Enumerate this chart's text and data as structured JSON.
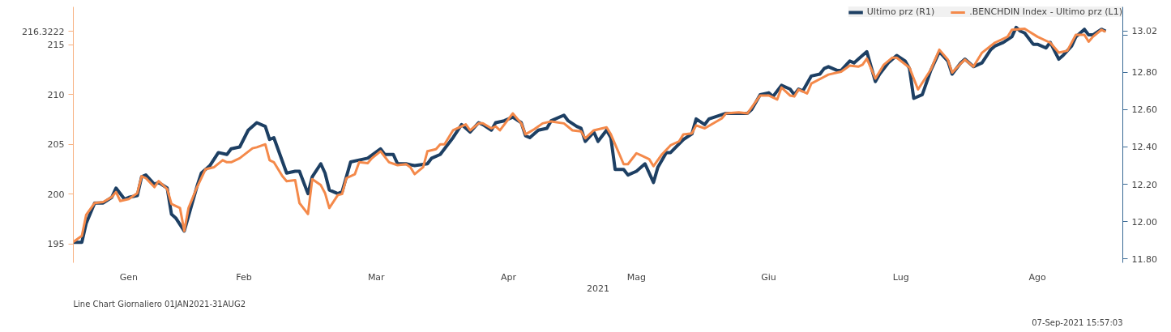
{
  "chart_data": {
    "type": "line",
    "xlabel": "2021",
    "legend": "top right",
    "grid": false,
    "marker": "none",
    "line_style": "solid",
    "xlim": [
      "2021-01-01",
      "2021-09-04"
    ],
    "xticks": [
      {
        "value": "2021-01-14",
        "label": "Gen"
      },
      {
        "value": "2021-02-10",
        "label": "Feb"
      },
      {
        "value": "2021-03-13",
        "label": "Mar"
      },
      {
        "value": "2021-04-13",
        "label": "Apr"
      },
      {
        "value": "2021-05-13",
        "label": "Mag"
      },
      {
        "value": "2021-06-13",
        "label": "Giu"
      },
      {
        "value": "2021-07-14",
        "label": "Lug"
      },
      {
        "value": "2021-08-15",
        "label": "Ago"
      }
    ],
    "ylim": [
      193.1,
      218.8
    ],
    "yticks": [
      195,
      200,
      205,
      210,
      215,
      {
        "value": 216.3222,
        "label": "216.3222"
      }
    ],
    "y2lim": [
      11.78,
      13.15
    ],
    "y2ticks": [
      {
        "value": 11.8,
        "label": "11.80"
      },
      {
        "value": 12.0,
        "label": "12.00"
      },
      {
        "value": 12.2,
        "label": "12.20"
      },
      {
        "value": 12.4,
        "label": "12.40"
      },
      {
        "value": 12.6,
        "label": "12.60"
      },
      {
        "value": 12.8,
        "label": "12.80"
      },
      {
        "value": 13.0,
        "label": null
      },
      {
        "value": 13.02,
        "label": "13.02"
      }
    ],
    "annotations": [
      "Line Chart  Giornaliero 01JAN2021-31AUG2",
      "07-Sep-2021 15:57:03"
    ],
    "series": [
      {
        "name": "Ultimo prz (R1)",
        "color": "#1d3f63",
        "axis": "y2",
        "x": [
          "2021-01-01",
          "2021-01-03",
          "2021-01-04",
          "2021-01-06",
          "2021-01-08",
          "2021-01-10",
          "2021-01-11",
          "2021-01-13",
          "2021-01-14",
          "2021-01-16",
          "2021-01-17",
          "2021-01-18",
          "2021-01-20",
          "2021-01-21",
          "2021-01-23",
          "2021-01-24",
          "2021-01-25",
          "2021-01-27",
          "2021-01-28",
          "2021-01-30",
          "2021-01-31",
          "2021-02-02",
          "2021-02-04",
          "2021-02-06",
          "2021-02-07",
          "2021-02-09",
          "2021-02-11",
          "2021-02-13",
          "2021-02-15",
          "2021-02-16",
          "2021-02-17",
          "2021-02-20",
          "2021-02-22",
          "2021-02-23",
          "2021-02-25",
          "2021-02-26",
          "2021-02-28",
          "2021-03-01",
          "2021-03-02",
          "2021-03-04",
          "2021-03-05",
          "2021-03-07",
          "2021-03-09",
          "2021-03-11",
          "2021-03-14",
          "2021-03-15",
          "2021-03-17",
          "2021-03-18",
          "2021-03-20",
          "2021-03-22",
          "2021-03-25",
          "2021-03-26",
          "2021-03-28",
          "2021-03-31",
          "2021-04-02",
          "2021-04-04",
          "2021-04-06",
          "2021-04-07",
          "2021-04-09",
          "2021-04-10",
          "2021-04-12",
          "2021-04-14",
          "2021-04-16",
          "2021-04-17",
          "2021-04-18",
          "2021-04-20",
          "2021-04-22",
          "2021-04-23",
          "2021-04-26",
          "2021-04-27",
          "2021-04-29",
          "2021-04-30",
          "2021-05-01",
          "2021-05-03",
          "2021-05-04",
          "2021-05-06",
          "2021-05-07",
          "2021-05-08",
          "2021-05-10",
          "2021-05-11",
          "2021-05-13",
          "2021-05-15",
          "2021-05-17",
          "2021-05-18",
          "2021-05-20",
          "2021-05-21",
          "2021-05-24",
          "2021-05-26",
          "2021-05-27",
          "2021-05-29",
          "2021-05-30",
          "2021-06-03",
          "2021-06-06",
          "2021-06-08",
          "2021-06-09",
          "2021-06-11",
          "2021-06-13",
          "2021-06-14",
          "2021-06-16",
          "2021-06-18",
          "2021-06-19",
          "2021-06-20",
          "2021-06-21",
          "2021-06-23",
          "2021-06-25",
          "2021-06-26",
          "2021-06-27",
          "2021-06-29",
          "2021-06-30",
          "2021-07-02",
          "2021-07-03",
          "2021-07-04",
          "2021-07-06",
          "2021-07-08",
          "2021-07-09",
          "2021-07-11",
          "2021-07-13",
          "2021-07-15",
          "2021-07-16",
          "2021-07-17",
          "2021-07-19",
          "2021-07-21",
          "2021-07-23",
          "2021-07-25",
          "2021-07-26",
          "2021-07-28",
          "2021-07-29",
          "2021-07-31",
          "2021-08-02",
          "2021-08-04",
          "2021-08-05",
          "2021-08-07",
          "2021-08-09",
          "2021-08-10",
          "2021-08-11",
          "2021-08-12",
          "2021-08-14",
          "2021-08-15",
          "2021-08-17",
          "2021-08-18",
          "2021-08-20",
          "2021-08-21",
          "2021-08-23",
          "2021-08-24",
          "2021-08-26",
          "2021-08-27",
          "2021-08-28",
          "2021-08-30",
          "2021-08-31"
        ],
        "values": [
          11.89,
          11.89,
          11.99,
          12.1,
          12.1,
          12.13,
          12.18,
          12.12,
          12.13,
          12.14,
          12.24,
          12.25,
          12.2,
          12.21,
          12.18,
          12.04,
          12.02,
          11.95,
          12.03,
          12.19,
          12.26,
          12.3,
          12.37,
          12.36,
          12.39,
          12.4,
          12.49,
          12.53,
          12.51,
          12.44,
          12.45,
          12.26,
          12.27,
          12.27,
          12.15,
          12.24,
          12.31,
          12.26,
          12.17,
          12.15,
          12.16,
          12.32,
          12.33,
          12.34,
          12.39,
          12.36,
          12.36,
          12.31,
          12.31,
          12.3,
          12.31,
          12.34,
          12.36,
          12.45,
          12.52,
          12.48,
          12.53,
          12.52,
          12.49,
          12.53,
          12.54,
          12.56,
          12.53,
          12.46,
          12.45,
          12.49,
          12.5,
          12.54,
          12.57,
          12.54,
          12.51,
          12.5,
          12.43,
          12.48,
          12.43,
          12.49,
          12.45,
          12.28,
          12.28,
          12.25,
          12.27,
          12.31,
          12.21,
          12.29,
          12.37,
          12.37,
          12.44,
          12.47,
          12.55,
          12.52,
          12.55,
          12.58,
          12.58,
          12.58,
          12.6,
          12.68,
          12.69,
          12.67,
          12.73,
          12.71,
          12.68,
          12.71,
          12.7,
          12.78,
          12.79,
          12.82,
          12.83,
          12.81,
          12.81,
          12.86,
          12.85,
          12.87,
          12.91,
          12.75,
          12.79,
          12.85,
          12.89,
          12.86,
          12.82,
          12.66,
          12.68,
          12.81,
          12.91,
          12.86,
          12.79,
          12.85,
          12.87,
          12.83,
          12.85,
          12.92,
          12.94,
          12.96,
          12.99,
          13.04,
          13.02,
          13.01,
          12.95,
          12.95,
          12.93,
          12.96,
          12.87,
          12.89,
          12.94,
          12.99,
          13.03,
          13.0,
          13.0,
          13.03,
          13.02
        ]
      },
      {
        "name": ".BENCHDIN Index - Ultimo prz (L1)",
        "color": "#f4894a",
        "x": [
          "2021-01-01",
          "2021-01-03",
          "2021-01-04",
          "2021-01-06",
          "2021-01-08",
          "2021-01-10",
          "2021-01-11",
          "2021-01-12",
          "2021-01-14",
          "2021-01-16",
          "2021-01-17",
          "2021-01-18",
          "2021-01-20",
          "2021-01-21",
          "2021-01-23",
          "2021-01-24",
          "2021-01-26",
          "2021-01-27",
          "2021-01-28",
          "2021-01-30",
          "2021-02-01",
          "2021-02-03",
          "2021-02-05",
          "2021-02-06",
          "2021-02-07",
          "2021-02-09",
          "2021-02-12",
          "2021-02-13",
          "2021-02-15",
          "2021-02-16",
          "2021-02-17",
          "2021-02-19",
          "2021-02-20",
          "2021-02-22",
          "2021-02-23",
          "2021-02-25",
          "2021-02-26",
          "2021-02-28",
          "2021-03-01",
          "2021-03-02",
          "2021-03-04",
          "2021-03-05",
          "2021-03-06",
          "2021-03-08",
          "2021-03-09",
          "2021-03-11",
          "2021-03-12",
          "2021-03-14",
          "2021-03-16",
          "2021-03-18",
          "2021-03-20",
          "2021-03-21",
          "2021-03-22",
          "2021-03-24",
          "2021-03-25",
          "2021-03-27",
          "2021-03-28",
          "2021-03-29",
          "2021-03-31",
          "2021-04-03",
          "2021-04-04",
          "2021-04-06",
          "2021-04-07",
          "2021-04-09",
          "2021-04-10",
          "2021-04-11",
          "2021-04-14",
          "2021-04-16",
          "2021-04-17",
          "2021-04-19",
          "2021-04-21",
          "2021-04-23",
          "2021-04-26",
          "2021-04-28",
          "2021-04-30",
          "2021-05-01",
          "2021-05-03",
          "2021-05-06",
          "2021-05-07",
          "2021-05-10",
          "2021-05-11",
          "2021-05-13",
          "2021-05-14",
          "2021-05-16",
          "2021-05-17",
          "2021-05-19",
          "2021-05-21",
          "2021-05-23",
          "2021-05-24",
          "2021-05-26",
          "2021-05-27",
          "2021-05-29",
          "2021-06-02",
          "2021-06-03",
          "2021-06-06",
          "2021-06-08",
          "2021-06-11",
          "2021-06-13",
          "2021-06-15",
          "2021-06-16",
          "2021-06-18",
          "2021-06-19",
          "2021-06-20",
          "2021-06-22",
          "2021-06-23",
          "2021-06-27",
          "2021-06-30",
          "2021-07-02",
          "2021-07-04",
          "2021-07-05",
          "2021-07-06",
          "2021-07-08",
          "2021-07-10",
          "2021-07-12",
          "2021-07-13",
          "2021-07-16",
          "2021-07-18",
          "2021-07-21",
          "2021-07-23",
          "2021-07-25",
          "2021-07-26",
          "2021-07-28",
          "2021-07-29",
          "2021-07-31",
          "2021-08-02",
          "2021-08-05",
          "2021-08-08",
          "2021-08-09",
          "2021-08-12",
          "2021-08-15",
          "2021-08-18",
          "2021-08-20",
          "2021-08-22",
          "2021-08-24",
          "2021-08-26",
          "2021-08-27",
          "2021-08-28",
          "2021-08-30",
          "2021-08-31"
        ],
        "values": [
          195.2,
          195.8,
          197.9,
          199.1,
          199.2,
          199.7,
          200.2,
          199.3,
          199.5,
          200.1,
          201.8,
          201.6,
          200.7,
          201.3,
          200.5,
          199.0,
          198.6,
          196.3,
          198.6,
          200.7,
          202.5,
          202.7,
          203.4,
          203.2,
          203.2,
          203.6,
          204.6,
          204.7,
          205.0,
          203.4,
          203.2,
          201.8,
          201.3,
          201.4,
          199.1,
          198.0,
          201.5,
          200.9,
          200.1,
          198.6,
          199.9,
          200.0,
          201.6,
          202.0,
          203.2,
          203.1,
          203.6,
          204.3,
          203.2,
          202.9,
          203.0,
          202.7,
          202.0,
          202.7,
          204.3,
          204.5,
          205.0,
          205.0,
          206.4,
          207.0,
          206.4,
          207.1,
          207.1,
          206.6,
          206.8,
          206.4,
          208.1,
          207.1,
          206.0,
          206.5,
          207.1,
          207.3,
          207.1,
          206.4,
          206.3,
          205.6,
          206.4,
          206.7,
          206.0,
          203.0,
          203.0,
          204.1,
          203.9,
          203.5,
          202.8,
          204.0,
          204.9,
          205.3,
          206.0,
          206.1,
          206.9,
          206.6,
          207.6,
          208.1,
          208.2,
          208.1,
          209.9,
          209.9,
          209.5,
          210.7,
          209.9,
          209.8,
          210.5,
          210.1,
          211.1,
          212.0,
          212.3,
          212.9,
          212.8,
          213.0,
          213.6,
          211.6,
          213.0,
          213.7,
          213.7,
          212.7,
          210.5,
          212.5,
          214.5,
          213.5,
          212.2,
          213.1,
          213.5,
          212.8,
          214.2,
          215.2,
          215.8,
          216.5,
          216.6,
          215.8,
          215.2,
          214.2,
          214.4,
          216.0,
          216.0,
          215.3,
          215.8,
          216.5,
          216.3
        ]
      }
    ]
  }
}
